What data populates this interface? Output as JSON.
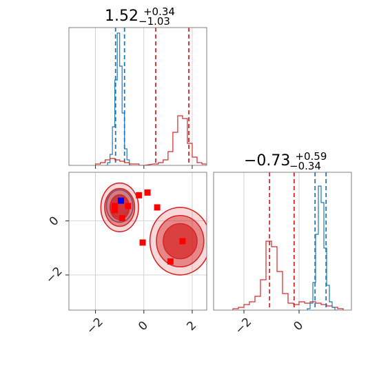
{
  "colors": {
    "red": "#d62728",
    "blue": "#1f77b4",
    "red_marker": "#ff0000",
    "blue_marker": "#0000ff"
  },
  "titles": {
    "p1": {
      "value": "1.52",
      "plus": "+0.34",
      "minus": "−1.03"
    },
    "p2": {
      "value": "−0.73",
      "plus": "+0.59",
      "minus": "−0.34"
    }
  },
  "chart_data": [
    {
      "type": "histogram",
      "panel": "top-left",
      "x_range": [
        -3.1,
        2.6
      ],
      "x_ticks": [
        -2,
        0,
        2
      ],
      "x_tick_labels": [
        "−2",
        "0",
        "2"
      ],
      "grid": true,
      "series": [
        {
          "color": "blue",
          "bins": [
            [
              -1.55,
              0.0
            ],
            [
              -1.45,
              0.02
            ],
            [
              -1.35,
              0.08
            ],
            [
              -1.25,
              0.28
            ],
            [
              -1.15,
              0.62
            ],
            [
              -1.05,
              0.96
            ],
            [
              -0.95,
              0.72
            ],
            [
              -0.85,
              0.38
            ],
            [
              -0.75,
              0.12
            ],
            [
              -0.65,
              0.04
            ],
            [
              -0.55,
              0.0
            ]
          ],
          "quantile_lines": [
            -1.17,
            -0.8
          ]
        },
        {
          "color": "red",
          "bins": [
            [
              -1.9,
              0.01
            ],
            [
              -1.7,
              0.02
            ],
            [
              -1.5,
              0.04
            ],
            [
              -1.3,
              0.05
            ],
            [
              -1.1,
              0.04
            ],
            [
              -0.9,
              0.03
            ],
            [
              -0.7,
              0.02
            ],
            [
              -0.5,
              0.01
            ],
            [
              -0.3,
              0.01
            ],
            [
              -0.1,
              0.0
            ],
            [
              0.5,
              0.01
            ],
            [
              0.7,
              0.02
            ],
            [
              0.9,
              0.04
            ],
            [
              1.1,
              0.1
            ],
            [
              1.3,
              0.24
            ],
            [
              1.5,
              0.36
            ],
            [
              1.7,
              0.34
            ],
            [
              1.9,
              0.16
            ],
            [
              2.1,
              0.06
            ],
            [
              2.3,
              0.02
            ],
            [
              2.5,
              0.01
            ]
          ],
          "quantile_lines": [
            0.49,
            1.86
          ]
        }
      ]
    },
    {
      "type": "scatter",
      "panel": "bottom-left",
      "x_range": [
        -3.1,
        2.6
      ],
      "y_range": [
        -3.3,
        1.8
      ],
      "x_ticks": [
        -2,
        0,
        2
      ],
      "x_tick_labels": [
        "−2",
        "0",
        "2"
      ],
      "y_ticks": [
        0,
        -2
      ],
      "y_tick_labels": [
        "0",
        "−2"
      ],
      "grid": true,
      "contours": [
        {
          "color": "blue",
          "center": [
            -1.0,
            0.55
          ],
          "levels": [
            [
              0.55,
              0.6
            ],
            [
              0.38,
              0.42
            ]
          ]
        },
        {
          "color": "red",
          "center": [
            -1.0,
            0.5
          ],
          "levels": [
            [
              0.78,
              0.9
            ],
            [
              0.62,
              0.7
            ],
            [
              0.4,
              0.45
            ]
          ]
        },
        {
          "color": "red",
          "center": [
            1.5,
            -0.75
          ],
          "levels": [
            [
              1.25,
              1.25
            ],
            [
              0.98,
              0.95
            ],
            [
              0.7,
              0.65
            ]
          ]
        }
      ],
      "markers": [
        {
          "color": "blue",
          "points": [
            [
              -0.95,
              0.75
            ]
          ]
        },
        {
          "color": "red",
          "points": [
            [
              -1.2,
              0.55
            ],
            [
              -1.2,
              0.4
            ],
            [
              -0.9,
              0.1
            ],
            [
              -0.65,
              0.55
            ],
            [
              -0.2,
              0.95
            ],
            [
              0.15,
              1.05
            ],
            [
              0.55,
              0.5
            ],
            [
              -0.05,
              -0.8
            ],
            [
              1.1,
              -1.5
            ],
            [
              1.6,
              -0.75
            ]
          ]
        }
      ]
    },
    {
      "type": "histogram",
      "panel": "bottom-right",
      "x_range": [
        -3.1,
        1.9
      ],
      "x_ticks": [
        -2,
        0
      ],
      "x_tick_labels": [
        "−2",
        "0"
      ],
      "grid": true,
      "series": [
        {
          "color": "red",
          "bins": [
            [
              -2.3,
              0.01
            ],
            [
              -2.1,
              0.02
            ],
            [
              -1.9,
              0.04
            ],
            [
              -1.7,
              0.06
            ],
            [
              -1.5,
              0.1
            ],
            [
              -1.3,
              0.22
            ],
            [
              -1.1,
              0.5
            ],
            [
              -0.9,
              0.46
            ],
            [
              -0.7,
              0.28
            ],
            [
              -0.5,
              0.12
            ],
            [
              -0.3,
              0.05
            ],
            [
              -0.1,
              0.04
            ],
            [
              0.1,
              0.06
            ],
            [
              0.3,
              0.05
            ],
            [
              0.5,
              0.06
            ],
            [
              0.7,
              0.05
            ],
            [
              0.9,
              0.04
            ],
            [
              1.1,
              0.03
            ],
            [
              1.3,
              0.02
            ],
            [
              1.5,
              0.01
            ]
          ],
          "quantile_lines": [
            -1.07,
            -0.18
          ]
        },
        {
          "color": "blue",
          "bins": [
            [
              0.35,
              0.01
            ],
            [
              0.45,
              0.05
            ],
            [
              0.55,
              0.2
            ],
            [
              0.65,
              0.55
            ],
            [
              0.75,
              0.9
            ],
            [
              0.85,
              0.78
            ],
            [
              0.95,
              0.45
            ],
            [
              1.05,
              0.18
            ],
            [
              1.15,
              0.06
            ],
            [
              1.25,
              0.02
            ],
            [
              1.35,
              0.0
            ]
          ],
          "quantile_lines": [
            0.58,
            0.98
          ]
        }
      ]
    }
  ]
}
